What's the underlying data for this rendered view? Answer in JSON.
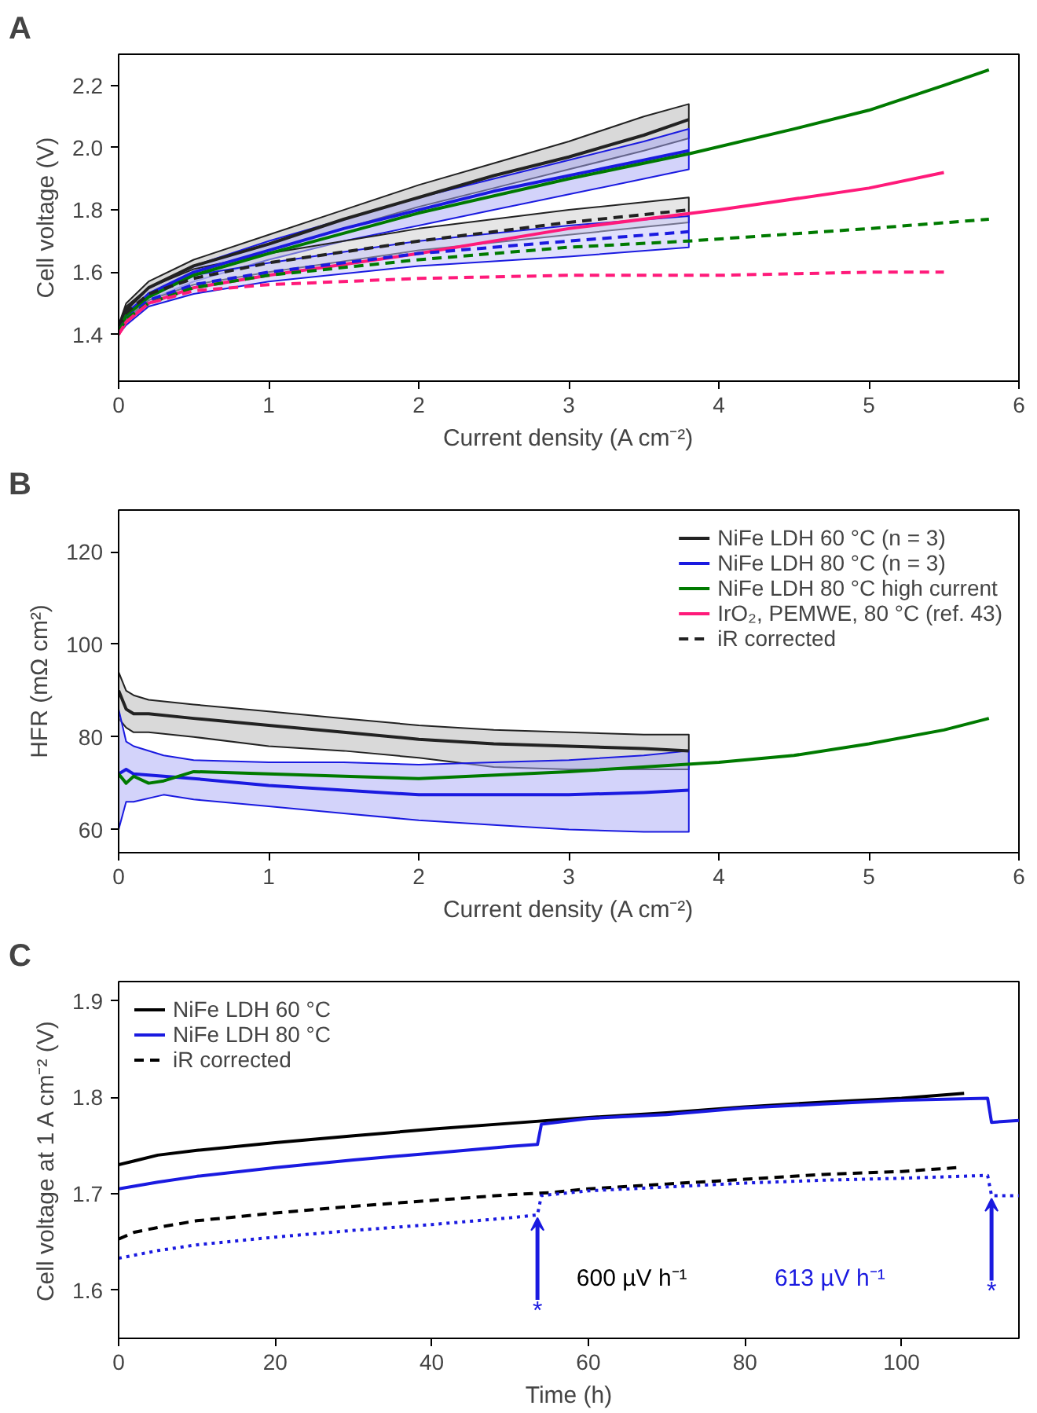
{
  "chart_data": [
    {
      "type": "line",
      "title": "A",
      "xlabel": "Current density (A cm⁻²)",
      "ylabel": "Cell voltage (V)",
      "xlim": [
        0,
        6
      ],
      "ylim": [
        1.25,
        2.3
      ],
      "xticks": [
        0,
        1,
        2,
        3,
        4,
        5,
        6
      ],
      "yticks": [
        1.4,
        1.6,
        1.8,
        {
          "value": 2.0,
          "label": "2.0"
        },
        2.2
      ],
      "grid": false,
      "legend": false,
      "series": [
        {
          "color": "#222222",
          "line_style": "solid",
          "x": [
            0,
            0.05,
            0.2,
            0.5,
            1,
            1.5,
            2,
            2.5,
            3,
            3.5,
            3.8
          ],
          "values": [
            1.42,
            1.48,
            1.55,
            1.62,
            1.69,
            1.77,
            1.84,
            1.91,
            1.97,
            2.04,
            2.09
          ],
          "lower": [
            1.41,
            1.46,
            1.53,
            1.6,
            1.67,
            1.74,
            1.81,
            1.87,
            1.93,
            1.99,
            2.03
          ],
          "upper": [
            1.43,
            1.5,
            1.57,
            1.64,
            1.72,
            1.8,
            1.88,
            1.95,
            2.02,
            2.1,
            2.14
          ]
        },
        {
          "color": "#1a1ae0",
          "line_style": "solid",
          "x": [
            0,
            0.05,
            0.2,
            0.5,
            1,
            1.5,
            2,
            2.5,
            3,
            3.5,
            3.8
          ],
          "values": [
            1.41,
            1.46,
            1.53,
            1.6,
            1.67,
            1.74,
            1.8,
            1.86,
            1.91,
            1.96,
            1.99
          ],
          "lower": [
            1.4,
            1.44,
            1.51,
            1.57,
            1.64,
            1.7,
            1.75,
            1.8,
            1.85,
            1.9,
            1.93
          ],
          "upper": [
            1.43,
            1.48,
            1.55,
            1.62,
            1.7,
            1.77,
            1.84,
            1.9,
            1.96,
            2.02,
            2.06
          ]
        },
        {
          "color": "#007a00",
          "line_style": "solid",
          "x": [
            0,
            0.05,
            0.2,
            0.5,
            1,
            2,
            3,
            3.8,
            4.5,
            5,
            5.5,
            5.8
          ],
          "values": [
            1.41,
            1.46,
            1.52,
            1.59,
            1.66,
            1.79,
            1.9,
            1.98,
            2.06,
            2.12,
            2.2,
            2.25
          ]
        },
        {
          "color": "#ff1a7a",
          "line_style": "solid",
          "x": [
            0,
            0.05,
            0.2,
            0.5,
            1,
            2,
            3,
            4,
            5,
            5.5
          ],
          "values": [
            1.4,
            1.44,
            1.5,
            1.55,
            1.59,
            1.66,
            1.74,
            1.8,
            1.87,
            1.92
          ]
        },
        {
          "color": "#222222",
          "line_style": "dashed",
          "x": [
            0,
            0.05,
            0.2,
            0.5,
            1,
            2,
            3,
            3.8
          ],
          "values": [
            1.42,
            1.47,
            1.53,
            1.58,
            1.63,
            1.7,
            1.76,
            1.8
          ],
          "lower": [
            1.41,
            1.45,
            1.51,
            1.56,
            1.6,
            1.67,
            1.72,
            1.76
          ],
          "upper": [
            1.43,
            1.49,
            1.55,
            1.61,
            1.66,
            1.74,
            1.8,
            1.84
          ]
        },
        {
          "color": "#1a1ae0",
          "line_style": "dashed",
          "x": [
            0,
            0.05,
            0.2,
            0.5,
            1,
            2,
            3,
            3.8
          ],
          "values": [
            1.41,
            1.45,
            1.51,
            1.56,
            1.6,
            1.66,
            1.7,
            1.73
          ],
          "lower": [
            1.4,
            1.43,
            1.49,
            1.53,
            1.57,
            1.62,
            1.65,
            1.68
          ],
          "upper": [
            1.43,
            1.47,
            1.53,
            1.59,
            1.63,
            1.7,
            1.75,
            1.78
          ]
        },
        {
          "color": "#007a00",
          "line_style": "dashed",
          "x": [
            0,
            0.05,
            0.2,
            0.5,
            1,
            2,
            3,
            3.8,
            5,
            5.8
          ],
          "values": [
            1.41,
            1.45,
            1.5,
            1.55,
            1.59,
            1.64,
            1.68,
            1.7,
            1.74,
            1.77
          ]
        },
        {
          "color": "#ff1a7a",
          "line_style": "dashed",
          "x": [
            0,
            0.05,
            0.2,
            0.5,
            1,
            2,
            3,
            4,
            5,
            5.5
          ],
          "values": [
            1.4,
            1.44,
            1.5,
            1.54,
            1.56,
            1.58,
            1.59,
            1.59,
            1.6,
            1.6
          ]
        }
      ]
    },
    {
      "type": "line",
      "title": "B",
      "xlabel": "Current density (A cm⁻²)",
      "ylabel": "HFR (mΩ cm²)",
      "xlim": [
        0,
        6
      ],
      "ylim": [
        55,
        129
      ],
      "xticks": [
        0,
        1,
        2,
        3,
        4,
        5,
        6
      ],
      "yticks": [
        60,
        80,
        100,
        120
      ],
      "grid": false,
      "legend": "top right",
      "series": [
        {
          "name": "NiFe LDH 60 °C (n = 3)",
          "color": "#222222",
          "line_style": "solid",
          "x": [
            0,
            0.05,
            0.1,
            0.2,
            0.5,
            1,
            1.5,
            2,
            2.5,
            3,
            3.5,
            3.8
          ],
          "values": [
            90,
            86,
            85,
            85,
            84,
            82.5,
            81,
            79.5,
            78.5,
            78,
            77.5,
            77
          ],
          "lower": [
            84,
            82,
            81,
            81,
            80,
            78,
            77,
            75.5,
            73.5,
            73,
            73,
            73
          ],
          "upper": [
            94,
            90,
            89,
            88,
            87,
            85.5,
            84,
            82.5,
            81.5,
            81,
            80.5,
            80.5
          ]
        },
        {
          "name": "NiFe LDH 80 °C (n = 3)",
          "color": "#1a1ae0",
          "line_style": "solid",
          "x": [
            0,
            0.05,
            0.1,
            0.3,
            0.5,
            1,
            1.5,
            2,
            2.5,
            3,
            3.5,
            3.8
          ],
          "values": [
            72,
            73,
            72,
            71.5,
            71,
            69.5,
            68.5,
            67.5,
            67.5,
            67.5,
            68,
            68.5
          ],
          "lower": [
            60,
            66,
            66,
            67.5,
            66.5,
            65,
            63.5,
            62,
            61,
            60,
            59.5,
            59.5
          ],
          "upper": [
            86,
            79,
            78,
            76,
            75,
            74.5,
            74.5,
            74,
            74.5,
            75,
            76,
            77
          ]
        },
        {
          "name": "NiFe LDH 80 °C high current",
          "color": "#007a00",
          "line_style": "solid",
          "x": [
            0,
            0.05,
            0.1,
            0.2,
            0.3,
            0.5,
            1,
            2,
            3,
            4,
            4.5,
            5,
            5.5,
            5.8
          ],
          "values": [
            72,
            70,
            71.5,
            70,
            70.5,
            72.5,
            72,
            71,
            72.5,
            74.5,
            76,
            78.5,
            81.5,
            84
          ]
        },
        {
          "name": "IrO₂, PEMWE, 80 °C (ref. 43)",
          "color": "#ff1a7a",
          "line_style": "solid"
        },
        {
          "name": "iR corrected",
          "color": "#222222",
          "line_style": "dashed"
        }
      ]
    },
    {
      "type": "line",
      "title": "C",
      "xlabel": "Time (h)",
      "ylabel": "Cell voltage at 1 A cm⁻² (V)",
      "xlim": [
        0,
        115
      ],
      "ylim": [
        1.55,
        1.92
      ],
      "xticks": [
        0,
        20,
        40,
        60,
        80,
        100
      ],
      "yticks": [
        1.6,
        1.7,
        1.8,
        1.9
      ],
      "grid": false,
      "legend": "top left",
      "series": [
        {
          "name": "NiFe LDH 60 °C",
          "color": "#000000",
          "line_style": "solid",
          "x": [
            0,
            2,
            5,
            10,
            20,
            30,
            40,
            50,
            60,
            70,
            80,
            90,
            100,
            108
          ],
          "values": [
            1.73,
            1.734,
            1.74,
            1.745,
            1.753,
            1.76,
            1.767,
            1.773,
            1.779,
            1.784,
            1.79,
            1.795,
            1.799,
            1.804
          ]
        },
        {
          "name": "NiFe LDH 80 °C",
          "color": "#1a1ae0",
          "line_style": "solid",
          "x": [
            0,
            5,
            10,
            20,
            30,
            40,
            50,
            53.5,
            54,
            60,
            70,
            80,
            90,
            100,
            111,
            111.5,
            115
          ],
          "values": [
            1.705,
            1.712,
            1.718,
            1.727,
            1.735,
            1.742,
            1.749,
            1.751,
            1.772,
            1.778,
            1.782,
            1.789,
            1.793,
            1.797,
            1.799,
            1.774,
            1.776
          ]
        },
        {
          "name": "iR corrected",
          "color": "#000000",
          "line_style": "dashed",
          "x": [
            0,
            2,
            5,
            10,
            20,
            30,
            40,
            50,
            55,
            60,
            70,
            80,
            90,
            100,
            107
          ],
          "values": [
            1.653,
            1.66,
            1.665,
            1.672,
            1.68,
            1.687,
            1.693,
            1.699,
            1.701,
            1.705,
            1.71,
            1.715,
            1.72,
            1.723,
            1.727
          ]
        },
        {
          "color": "#1a1ae0",
          "line_style": "dotted",
          "x": [
            0,
            5,
            10,
            20,
            30,
            40,
            50,
            53.5,
            54,
            60,
            70,
            80,
            90,
            100,
            111,
            111.5,
            115
          ],
          "values": [
            1.633,
            1.641,
            1.647,
            1.655,
            1.662,
            1.668,
            1.675,
            1.678,
            1.698,
            1.703,
            1.707,
            1.711,
            1.714,
            1.716,
            1.719,
            1.698,
            1.698
          ]
        }
      ],
      "annotations": [
        "600 µV h⁻¹",
        "613 µV h⁻¹",
        {
          "text": "*",
          "x": 53.5,
          "y": 1.678
        },
        {
          "text": "*",
          "x": 111.5,
          "y": 1.698
        }
      ]
    }
  ]
}
